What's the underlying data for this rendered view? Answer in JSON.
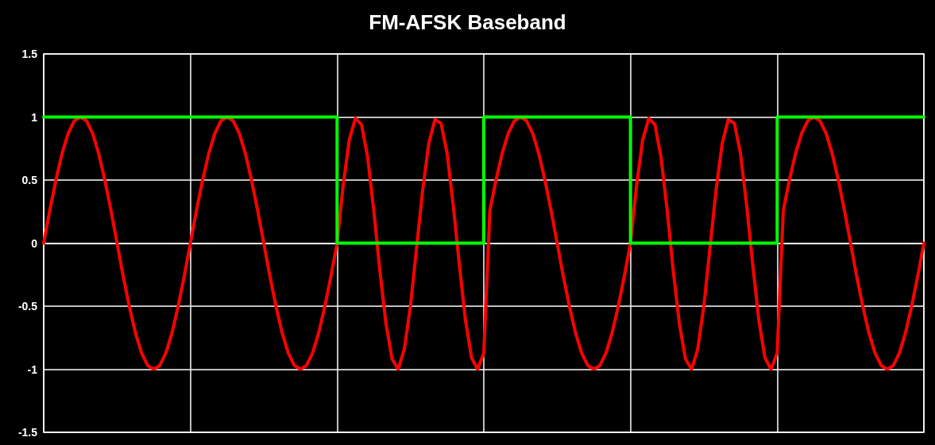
{
  "chart_data": {
    "type": "line",
    "title": "FM-AFSK Baseband",
    "categories": [
      null,
      null,
      null,
      null,
      null,
      null,
      null,
      null,
      null,
      null,
      null,
      null,
      null,
      null,
      null,
      null,
      null,
      null,
      null,
      null,
      null,
      null,
      null,
      null,
      null,
      null,
      null,
      null,
      null,
      null,
      null,
      null,
      null,
      null,
      null,
      null,
      null,
      null,
      null,
      null,
      null,
      null,
      null,
      null,
      null,
      null,
      null,
      null,
      null,
      null,
      null,
      null,
      null,
      null,
      null,
      null,
      null,
      null,
      null,
      null,
      null,
      null,
      null,
      null,
      null,
      null,
      null,
      null,
      null,
      null,
      null,
      null,
      null,
      null,
      null,
      null,
      null,
      null,
      null,
      null,
      null,
      null,
      null,
      null,
      null,
      null,
      null,
      null,
      null,
      null,
      null,
      null,
      null,
      null,
      null,
      null,
      null,
      null,
      null,
      null,
      null,
      null,
      null,
      null,
      null,
      null,
      null,
      null,
      null,
      null,
      null,
      null,
      null,
      null,
      null,
      null,
      null,
      null,
      null,
      null,
      null,
      null,
      null,
      null,
      null,
      null,
      null,
      null,
      null,
      null,
      null,
      null,
      null,
      null,
      null,
      null,
      null,
      null,
      null,
      null,
      null,
      null,
      null,
      null,
      null
    ],
    "ylim": [
      -1.5,
      1.5
    ],
    "yticks": [
      -1.5,
      -1,
      -0.5,
      0,
      0.5,
      1,
      1.5
    ],
    "tick_labels": "y",
    "grid": true,
    "line_style": "solid",
    "series": [
      {
        "color": "#ff0000",
        "values": [
          0,
          0.26,
          0.5,
          0.71,
          0.87,
          0.97,
          1,
          0.97,
          0.87,
          0.71,
          0.5,
          0.26,
          0,
          -0.26,
          -0.5,
          -0.71,
          -0.87,
          -0.97,
          -1,
          -0.97,
          -0.87,
          -0.71,
          -0.5,
          -0.26,
          0,
          0.26,
          0.5,
          0.71,
          0.87,
          0.97,
          1,
          0.97,
          0.87,
          0.71,
          0.5,
          0.26,
          0,
          -0.26,
          -0.5,
          -0.71,
          -0.87,
          -0.97,
          -1,
          -0.97,
          -0.87,
          -0.71,
          -0.5,
          -0.26,
          0,
          0.46,
          0.82,
          0.99,
          0.94,
          0.68,
          0.26,
          -0.22,
          -0.64,
          -0.92,
          -1,
          -0.84,
          -0.5,
          -0.04,
          0.42,
          0.79,
          0.98,
          0.95,
          0.71,
          0.3,
          -0.17,
          -0.61,
          -0.91,
          -1,
          -0.87,
          0.26,
          0.5,
          0.71,
          0.87,
          0.97,
          1,
          0.97,
          0.87,
          0.71,
          0.5,
          0.26,
          0,
          -0.26,
          -0.5,
          -0.71,
          -0.87,
          -0.97,
          -1,
          -0.97,
          -0.87,
          -0.71,
          -0.5,
          -0.26,
          0,
          0.46,
          0.82,
          0.99,
          0.94,
          0.68,
          0.26,
          -0.22,
          -0.64,
          -0.92,
          -1,
          -0.84,
          -0.5,
          -0.04,
          0.42,
          0.79,
          0.98,
          0.95,
          0.71,
          0.3,
          -0.17,
          -0.61,
          -0.91,
          -1,
          -0.87,
          0.26,
          0.5,
          0.71,
          0.87,
          0.97,
          1,
          0.97,
          0.87,
          0.71,
          0.5,
          0.26,
          0,
          -0.26,
          -0.5,
          -0.71,
          -0.87,
          -0.97,
          -1,
          -0.97,
          -0.87,
          -0.71,
          -0.5,
          -0.26,
          0
        ]
      },
      {
        "type": "step",
        "color": "#00ff00",
        "values": [
          1,
          1,
          1,
          1,
          1,
          1,
          1,
          1,
          1,
          1,
          1,
          1,
          1,
          1,
          1,
          1,
          1,
          1,
          1,
          1,
          1,
          1,
          1,
          1,
          1,
          1,
          1,
          1,
          1,
          1,
          1,
          1,
          1,
          1,
          1,
          1,
          1,
          1,
          1,
          1,
          1,
          1,
          1,
          1,
          1,
          1,
          1,
          1,
          0,
          0,
          0,
          0,
          0,
          0,
          0,
          0,
          0,
          0,
          0,
          0,
          0,
          0,
          0,
          0,
          0,
          0,
          0,
          0,
          0,
          0,
          0,
          0,
          1,
          1,
          1,
          1,
          1,
          1,
          1,
          1,
          1,
          1,
          1,
          1,
          1,
          1,
          1,
          1,
          1,
          1,
          1,
          1,
          1,
          1,
          1,
          1,
          0,
          0,
          0,
          0,
          0,
          0,
          0,
          0,
          0,
          0,
          0,
          0,
          0,
          0,
          0,
          0,
          0,
          0,
          0,
          0,
          0,
          0,
          0,
          0,
          1,
          1,
          1,
          1,
          1,
          1,
          1,
          1,
          1,
          1,
          1,
          1,
          1,
          1,
          1,
          1,
          1,
          1,
          1,
          1,
          1,
          1,
          1,
          1,
          1
        ]
      }
    ]
  }
}
